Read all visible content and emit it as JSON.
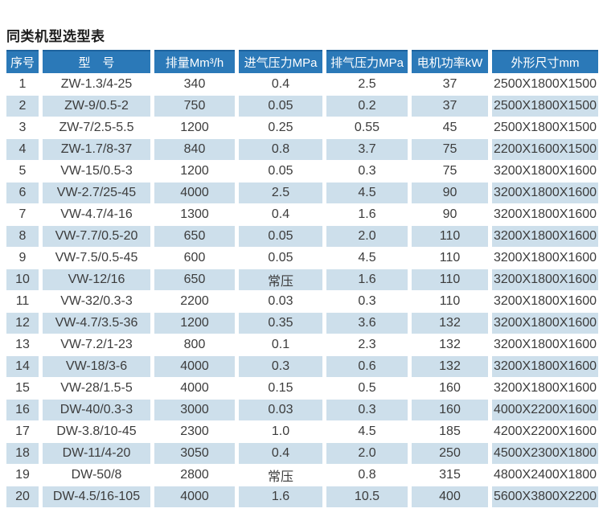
{
  "page": {
    "title": "同类机型选型表"
  },
  "colors": {
    "header_bg": "#2b79b8",
    "header_top_edge": "#1d639e",
    "header_text": "#ffffff",
    "alt_row_bg": "#cddfeb",
    "body_text": "#3c3c3c",
    "page_bg": "#ffffff"
  },
  "table": {
    "columns": [
      "序号",
      "型　号",
      "排量Mm³/h",
      "进气压力MPa",
      "排气压力MPa",
      "电机功率kW",
      "外形尺寸mm"
    ],
    "rows": [
      [
        "1",
        "ZW-1.3/4-25",
        "340",
        "0.4",
        "2.5",
        "37",
        "2500X1800X1500"
      ],
      [
        "2",
        "ZW-9/0.5-2",
        "750",
        "0.05",
        "0.2",
        "37",
        "2500X1800X1500"
      ],
      [
        "3",
        "ZW-7/2.5-5.5",
        "1200",
        "0.25",
        "0.55",
        "45",
        "2500X1800X1500"
      ],
      [
        "4",
        "ZW-1.7/8-37",
        "840",
        "0.8",
        "3.7",
        "75",
        "2200X1600X1500"
      ],
      [
        "5",
        "VW-15/0.5-3",
        "1200",
        "0.05",
        "0.3",
        "75",
        "3200X1800X1600"
      ],
      [
        "6",
        "VW-2.7/25-45",
        "4000",
        "2.5",
        "4.5",
        "90",
        "3200X1800X1600"
      ],
      [
        "7",
        "VW-4.7/4-16",
        "1300",
        "0.4",
        "1.6",
        "90",
        "3200X1800X1600"
      ],
      [
        "8",
        "VW-7.7/0.5-20",
        "650",
        "0.05",
        "2.0",
        "110",
        "3200X1800X1600"
      ],
      [
        "9",
        "VW-7.5/0.5-45",
        "600",
        "0.05",
        "4.5",
        "110",
        "3200X1800X1600"
      ],
      [
        "10",
        "VW-12/16",
        "650",
        "常压",
        "1.6",
        "110",
        "3200X1800X1600"
      ],
      [
        "11",
        "VW-32/0.3-3",
        "2200",
        "0.03",
        "0.3",
        "110",
        "3200X1800X1600"
      ],
      [
        "12",
        "VW-4.7/3.5-36",
        "1200",
        "0.35",
        "3.6",
        "132",
        "3200X1800X1600"
      ],
      [
        "13",
        "VW-7.2/1-23",
        "800",
        "0.1",
        "2.3",
        "132",
        "3200X1800X1600"
      ],
      [
        "14",
        "VW-18/3-6",
        "4000",
        "0.3",
        "0.6",
        "132",
        "3200X1800X1600"
      ],
      [
        "15",
        "VW-28/1.5-5",
        "4000",
        "0.15",
        "0.5",
        "160",
        "3200X1800X1600"
      ],
      [
        "16",
        "DW-40/0.3-3",
        "3000",
        "0.03",
        "0.3",
        "160",
        "4000X2200X1600"
      ],
      [
        "17",
        "DW-3.8/10-45",
        "2300",
        "1.0",
        "4.5",
        "185",
        "4200X2200X1600"
      ],
      [
        "18",
        "DW-11/4-20",
        "3050",
        "0.4",
        "2.0",
        "250",
        "4500X2300X1800"
      ],
      [
        "19",
        "DW-50/8",
        "2800",
        "常压",
        "0.8",
        "315",
        "4800X2400X1800"
      ],
      [
        "20",
        "DW-4.5/16-105",
        "4000",
        "1.6",
        "10.5",
        "400",
        "5600X3800X2200"
      ]
    ]
  }
}
